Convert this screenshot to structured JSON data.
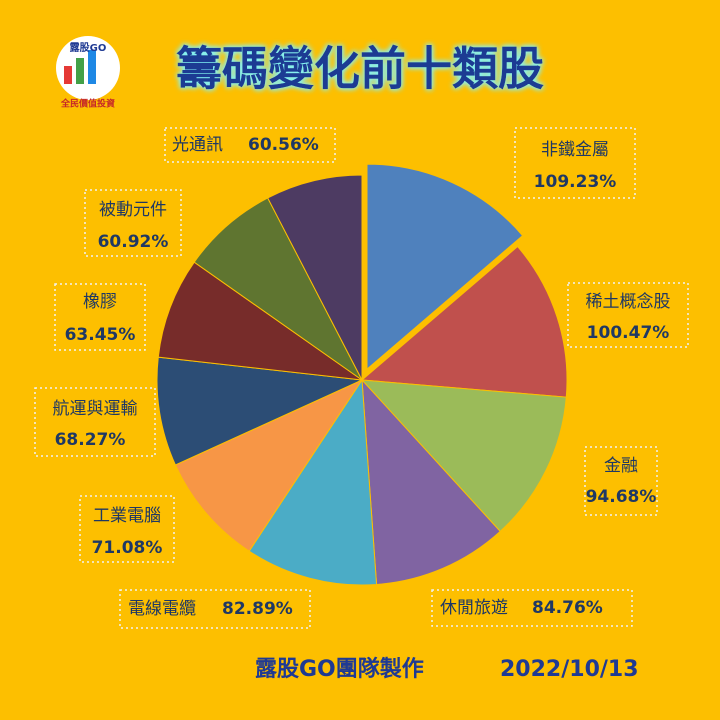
{
  "chart_data": {
    "type": "pie",
    "title": "籌碼變化前十類股",
    "logo": {
      "name": "露股GO",
      "slogan": "全民價值投資"
    },
    "footer": "露股GO團隊製作",
    "date": "2022/10/13",
    "categories": [
      "非鐵金屬",
      "稀土概念股",
      "金融",
      "休閒旅遊",
      "電線電纜",
      "工業電腦",
      "航運與運輸",
      "橡膠",
      "被動元件",
      "光通訊"
    ],
    "values": [
      109.23,
      100.47,
      94.68,
      84.76,
      82.89,
      71.08,
      68.27,
      63.45,
      60.92,
      60.56
    ],
    "value_labels": [
      "109.23%",
      "100.47%",
      "94.68%",
      "84.76%",
      "82.89%",
      "71.08%",
      "68.27%",
      "63.45%",
      "60.92%",
      "60.56%"
    ],
    "colors": [
      "#4f81bd",
      "#c0504d",
      "#9bbb59",
      "#8064a2",
      "#4bacc6",
      "#f79646",
      "#2c4d75",
      "#772c2a",
      "#5f7530",
      "#4d3b62"
    ],
    "exploded": [
      0
    ]
  }
}
